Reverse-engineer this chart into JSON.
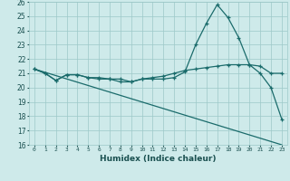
{
  "xlabel": "Humidex (Indice chaleur)",
  "bg_color": "#ceeaea",
  "grid_color": "#9dc8c8",
  "line_color": "#1a6b6b",
  "xlim": [
    -0.5,
    23.5
  ],
  "ylim": [
    16,
    26
  ],
  "xticks": [
    0,
    1,
    2,
    3,
    4,
    5,
    6,
    7,
    8,
    9,
    10,
    11,
    12,
    13,
    14,
    15,
    16,
    17,
    18,
    19,
    20,
    21,
    22,
    23
  ],
  "yticks": [
    16,
    17,
    18,
    19,
    20,
    21,
    22,
    23,
    24,
    25,
    26
  ],
  "line1_x": [
    0,
    1,
    2,
    3,
    4,
    5,
    6,
    7,
    8,
    9,
    10,
    11,
    12,
    13,
    14,
    15,
    16,
    17,
    18,
    19,
    20,
    21,
    22,
    23
  ],
  "line1_y": [
    21.3,
    21.0,
    20.5,
    20.9,
    20.9,
    20.7,
    20.7,
    20.6,
    20.6,
    20.4,
    20.6,
    20.6,
    20.6,
    20.7,
    21.1,
    23.0,
    24.5,
    25.8,
    24.9,
    23.5,
    21.6,
    21.0,
    20.0,
    17.8
  ],
  "line2_x": [
    0,
    1,
    2,
    3,
    4,
    5,
    6,
    7,
    8,
    9,
    10,
    11,
    12,
    13,
    14,
    15,
    16,
    17,
    18,
    19,
    20,
    21,
    22,
    23
  ],
  "line2_y": [
    21.3,
    21.0,
    20.5,
    20.9,
    20.9,
    20.7,
    20.6,
    20.6,
    20.4,
    20.4,
    20.6,
    20.7,
    20.8,
    21.0,
    21.2,
    21.3,
    21.4,
    21.5,
    21.6,
    21.6,
    21.6,
    21.5,
    21.0,
    21.0
  ],
  "line3_x": [
    0,
    23
  ],
  "line3_y": [
    21.3,
    16.0
  ]
}
